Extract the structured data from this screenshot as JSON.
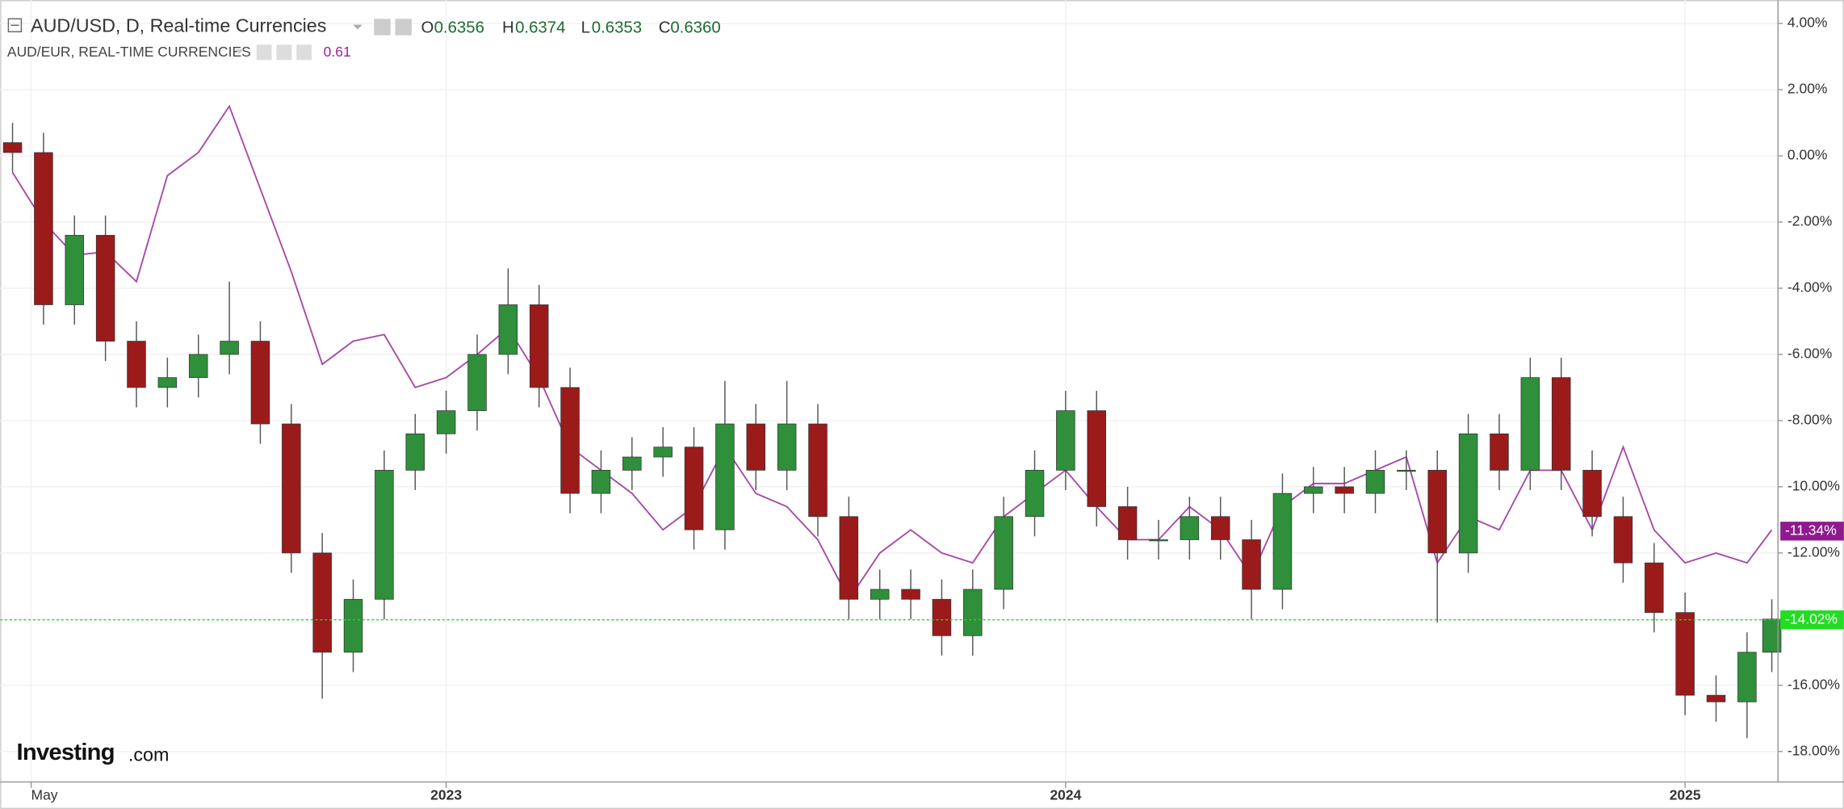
{
  "header": {
    "ohlc": [
      {
        "key": "O",
        "value": "0.6356"
      },
      {
        "key": "H",
        "value": "0.6374"
      },
      {
        "key": "L",
        "value": "0.6353"
      },
      {
        "key": "C",
        "value": "0.6360"
      }
    ],
    "compare_value": "0.61"
  },
  "logo": {
    "text": "Investing",
    "suffix": ".com"
  },
  "chart_data": {
    "type": "candlestick",
    "grid": true,
    "xlim": [
      2022.28,
      2025.15
    ],
    "xticks": [
      {
        "value": 2022.33,
        "label": "May"
      },
      2023,
      2024,
      2025
    ],
    "ylim": [
      -18.92,
      4.71
    ],
    "yticks": [
      {
        "value": 4,
        "label": "4.00%"
      },
      {
        "value": 2,
        "label": "2.00%"
      },
      {
        "value": 0,
        "label": "0.00%"
      },
      {
        "value": -2,
        "label": "-2.00%"
      },
      {
        "value": -4,
        "label": "-4.00%"
      },
      {
        "value": -6,
        "label": "-6.00%"
      },
      {
        "value": -8,
        "label": "-8.00%"
      },
      {
        "value": -10,
        "label": "-10.00%"
      },
      {
        "value": -12,
        "label": "-12.00%"
      },
      {
        "value": -14,
        "label": "-14.00%"
      },
      {
        "value": -16,
        "label": "-16.00%"
      },
      {
        "value": -18,
        "label": "-18.00%"
      }
    ],
    "x": [
      2022.3,
      2022.35,
      2022.4,
      2022.45,
      2022.5,
      2022.55,
      2022.6,
      2022.65,
      2022.7,
      2022.75,
      2022.8,
      2022.85,
      2022.9,
      2022.95,
      2023.0,
      2023.05,
      2023.1,
      2023.15,
      2023.2,
      2023.25,
      2023.3,
      2023.35,
      2023.4,
      2023.45,
      2023.5,
      2023.55,
      2023.6,
      2023.65,
      2023.7,
      2023.75,
      2023.8,
      2023.85,
      2023.9,
      2023.95,
      2024.0,
      2024.05,
      2024.1,
      2024.15,
      2024.2,
      2024.25,
      2024.3,
      2024.35,
      2024.4,
      2024.45,
      2024.5,
      2024.55,
      2024.6,
      2024.65,
      2024.7,
      2024.75,
      2024.8,
      2024.85,
      2024.9,
      2024.95,
      2025.0,
      2025.05,
      2025.1,
      2025.14
    ],
    "series": [
      {
        "name": "AUD/USD, D, Real-time Currencies",
        "type": "candlestick",
        "up_color": "#2f8f3a",
        "down_color": "#9b1b1b",
        "wick_color": "#555555",
        "open": [
          0.4,
          0.1,
          -4.5,
          -2.4,
          -5.6,
          -7.0,
          -6.7,
          -6.0,
          -5.6,
          -8.1,
          -12.0,
          -15.0,
          -13.4,
          -9.5,
          -8.4,
          -7.7,
          -6.0,
          -4.5,
          -7.0,
          -10.2,
          -9.5,
          -9.1,
          -8.8,
          -11.3,
          -8.1,
          -9.5,
          -8.1,
          -10.9,
          -13.4,
          -13.1,
          -13.4,
          -14.5,
          -13.1,
          -10.9,
          -9.5,
          -7.7,
          -10.6,
          -11.6,
          -11.6,
          -10.9,
          -11.6,
          -13.1,
          -10.2,
          -10.0,
          -10.2,
          -9.5,
          -9.5,
          -12.0,
          -8.4,
          -9.5,
          -6.7,
          -9.5,
          -10.9,
          -12.3,
          -13.8,
          -16.3,
          -16.5,
          -15.0
        ],
        "high": [
          1.0,
          0.7,
          -1.8,
          -1.8,
          -5.0,
          -6.1,
          -5.4,
          -3.8,
          -5.0,
          -7.5,
          -11.4,
          -12.8,
          -8.9,
          -7.8,
          -7.1,
          -5.4,
          -3.4,
          -3.9,
          -6.4,
          -8.9,
          -8.5,
          -8.2,
          -8.2,
          -6.8,
          -7.5,
          -6.8,
          -7.5,
          -10.3,
          -12.5,
          -12.5,
          -12.8,
          -12.5,
          -10.3,
          -8.9,
          -7.1,
          -7.1,
          -10.0,
          -11.0,
          -10.3,
          -10.3,
          -11.0,
          -9.6,
          -9.4,
          -9.4,
          -8.9,
          -8.9,
          -8.9,
          -7.8,
          -7.8,
          -6.1,
          -6.1,
          -8.9,
          -10.3,
          -11.7,
          -13.2,
          -15.7,
          -14.4,
          -13.4
        ],
        "low": [
          -0.5,
          -5.1,
          -5.1,
          -6.2,
          -7.6,
          -7.6,
          -7.3,
          -6.6,
          -8.7,
          -12.6,
          -16.4,
          -15.6,
          -14.0,
          -10.1,
          -9.0,
          -8.3,
          -6.6,
          -7.6,
          -10.8,
          -10.8,
          -10.1,
          -9.7,
          -11.9,
          -11.9,
          -10.1,
          -10.1,
          -11.5,
          -14.0,
          -14.0,
          -14.0,
          -15.1,
          -15.1,
          -13.7,
          -11.5,
          -10.1,
          -11.2,
          -12.2,
          -12.2,
          -12.2,
          -12.2,
          -14.0,
          -13.7,
          -10.8,
          -10.8,
          -10.8,
          -10.1,
          -14.1,
          -12.6,
          -10.1,
          -10.1,
          -10.1,
          -11.5,
          -12.9,
          -14.4,
          -16.9,
          -17.1,
          -17.6,
          -15.6
        ],
        "close": [
          0.1,
          -4.5,
          -2.4,
          -5.6,
          -7.0,
          -6.7,
          -6.0,
          -5.6,
          -8.1,
          -12.0,
          -15.0,
          -13.4,
          -9.5,
          -8.4,
          -7.7,
          -6.0,
          -4.5,
          -7.0,
          -10.2,
          -9.5,
          -9.1,
          -8.8,
          -11.3,
          -8.1,
          -9.5,
          -8.1,
          -10.9,
          -13.4,
          -13.1,
          -13.4,
          -14.5,
          -13.1,
          -10.9,
          -9.5,
          -7.7,
          -10.6,
          -11.6,
          -11.6,
          -10.9,
          -11.6,
          -13.1,
          -10.2,
          -10.0,
          -10.2,
          -9.5,
          -9.5,
          -12.0,
          -8.4,
          -9.5,
          -6.7,
          -9.5,
          -10.9,
          -12.3,
          -13.8,
          -16.3,
          -16.5,
          -15.0,
          -14.0
        ],
        "price_line": {
          "value": -14.02,
          "label": "-14.02%",
          "color": "#22dd22"
        }
      },
      {
        "name": "AUD/EUR, REAL-TIME CURRENCIES",
        "type": "line",
        "color": "#a64ca6",
        "values": [
          -0.5,
          -2.0,
          -3.0,
          -2.9,
          -3.8,
          -0.6,
          0.1,
          1.5,
          -1.0,
          -3.5,
          -6.3,
          -5.6,
          -5.4,
          -7.0,
          -6.7,
          -6.0,
          -5.2,
          -6.7,
          -8.8,
          -9.5,
          -10.2,
          -11.3,
          -10.6,
          -8.8,
          -10.2,
          -10.6,
          -11.6,
          -13.4,
          -12.0,
          -11.3,
          -12.0,
          -12.3,
          -10.9,
          -10.2,
          -9.5,
          -10.6,
          -11.6,
          -11.6,
          -10.6,
          -11.3,
          -12.7,
          -10.6,
          -9.9,
          -9.9,
          -9.5,
          -9.1,
          -12.3,
          -10.9,
          -11.3,
          -9.5,
          -9.5,
          -11.3,
          -8.8,
          -11.3,
          -12.3,
          -12.0,
          -12.3,
          -11.3
        ],
        "last": {
          "value": -11.34,
          "label": "-11.34%",
          "color": "#8e1a8e"
        }
      }
    ]
  }
}
